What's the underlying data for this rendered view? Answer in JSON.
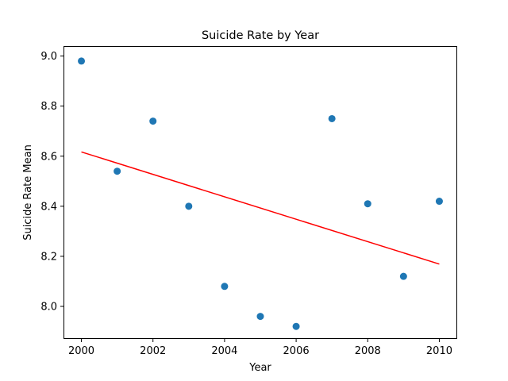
{
  "chart_data": {
    "type": "scatter",
    "title": "Suicide Rate by Year",
    "xlabel": "Year",
    "ylabel": "Suicide Rate Mean",
    "x": [
      2000,
      2001,
      2002,
      2003,
      2004,
      2005,
      2006,
      2007,
      2008,
      2009,
      2010
    ],
    "y": [
      8.98,
      8.54,
      8.74,
      8.4,
      8.08,
      7.96,
      7.92,
      8.75,
      8.41,
      8.12,
      8.42
    ],
    "xlim": [
      1999.5,
      2010.5
    ],
    "ylim": [
      7.87,
      9.04
    ],
    "xticks": [
      2000,
      2002,
      2004,
      2006,
      2008,
      2010
    ],
    "yticks": [
      8.0,
      8.2,
      8.4,
      8.6,
      8.8,
      9.0
    ],
    "ytick_labels": [
      "8.0",
      "8.2",
      "8.4",
      "8.6",
      "8.8",
      "9.0"
    ],
    "trend_line": {
      "x": [
        2000,
        2010
      ],
      "y": [
        8.617,
        8.169
      ]
    },
    "grid": false,
    "legend": false,
    "marker_color": "#1f77b4",
    "trend_color": "#ff0000"
  }
}
